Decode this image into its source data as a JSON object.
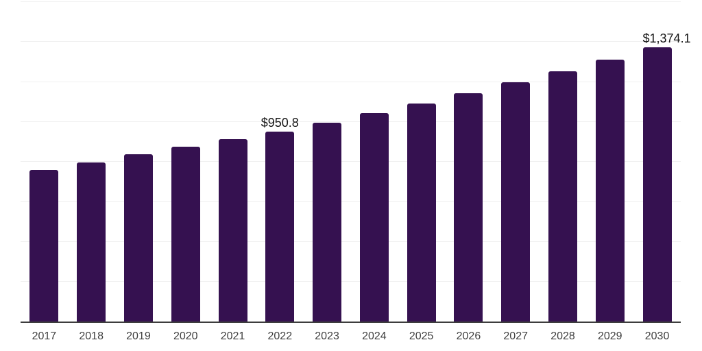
{
  "chart_data": {
    "type": "bar",
    "title": "",
    "xlabel": "",
    "ylabel": "",
    "categories": [
      "2017",
      "2018",
      "2019",
      "2020",
      "2021",
      "2022",
      "2023",
      "2024",
      "2025",
      "2026",
      "2027",
      "2028",
      "2029",
      "2030"
    ],
    "values": [
      757.6,
      797.7,
      836.3,
      874.9,
      914.9,
      950.8,
      995.6,
      1042.5,
      1091.6,
      1143.0,
      1196.8,
      1253.2,
      1312.2,
      1374.1
    ],
    "value_labels": [
      "",
      "",
      "",
      "",
      "",
      "$950.8",
      "",
      "",
      "",
      "",
      "",
      "",
      "",
      "$1,374.1"
    ],
    "ylim": [
      0,
      1600
    ],
    "grid": true,
    "grid_step": 200,
    "legend": "none",
    "y_tick_labels_visible": false,
    "bar_color": "#351150",
    "grid_color": "#f0f0f0",
    "axis_color": "#3d3d3d",
    "tick_label_color": "#3f3f3f",
    "value_label_color": "#141414",
    "background_color": "#ffffff"
  }
}
